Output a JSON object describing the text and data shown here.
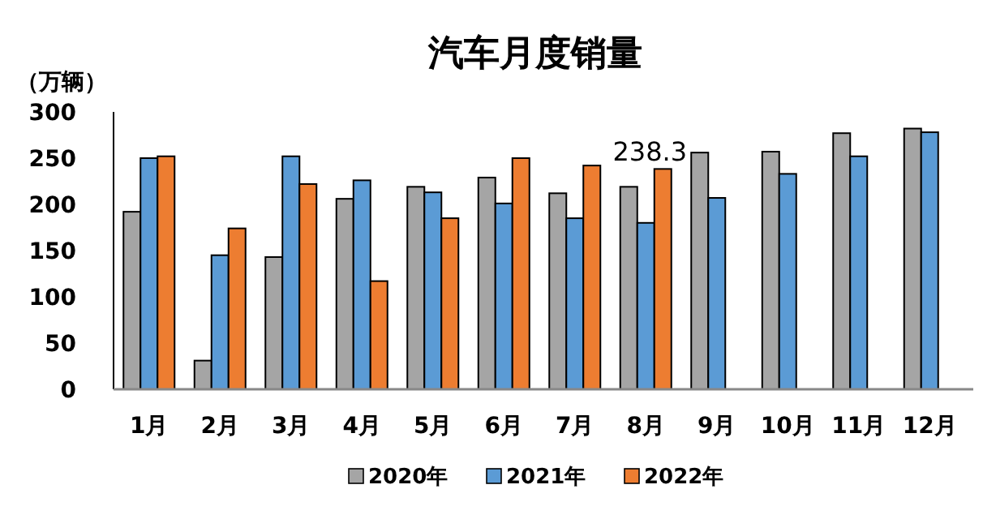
{
  "chart_data": {
    "type": "bar",
    "title": "汽车月度销量",
    "ylabel": "（万辆）",
    "categories": [
      "1月",
      "2月",
      "3月",
      "4月",
      "5月",
      "6月",
      "7月",
      "8月",
      "9月",
      "10月",
      "11月",
      "12月"
    ],
    "series": [
      {
        "name": "2020年",
        "color": "#a5a5a5",
        "values": [
          192,
          31,
          143,
          206,
          219,
          229,
          212,
          219,
          256,
          257,
          277,
          282
        ]
      },
      {
        "name": "2021年",
        "color": "#5b9bd5",
        "values": [
          250,
          145,
          252,
          226,
          213,
          201,
          185,
          180,
          207,
          233,
          252,
          278
        ]
      },
      {
        "name": "2022年",
        "color": "#ed7d31",
        "values": [
          252,
          174,
          222,
          117,
          185,
          250,
          242,
          238.3,
          null,
          null,
          null,
          null
        ],
        "value_labels": [
          null,
          null,
          null,
          null,
          null,
          null,
          null,
          "238.3",
          null,
          null,
          null,
          null
        ]
      }
    ],
    "ylim": [
      0,
      300
    ],
    "yticks": [
      0,
      50,
      100,
      150,
      200,
      250,
      300
    ],
    "legend": "bottom"
  }
}
